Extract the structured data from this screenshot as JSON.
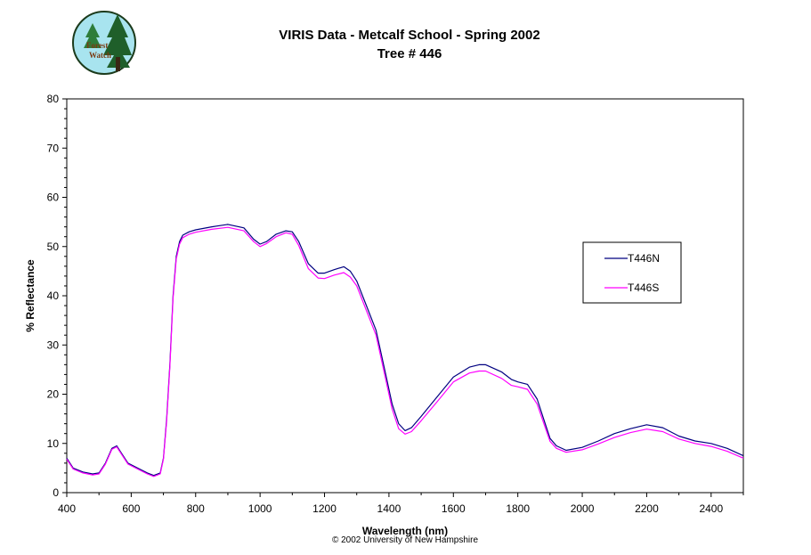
{
  "header": {
    "logo_text_1": "Forest",
    "logo_text_2": "Watch",
    "title_line1": "VIRIS Data - Metcalf School - Spring 2002",
    "title_line2": "Tree # 446"
  },
  "footer": {
    "copyright": "© 2002 University of New Hampshire"
  },
  "colors": {
    "T446N": "#000080",
    "T446S": "#ff00ff",
    "frame": "#000000"
  },
  "chart_data": {
    "type": "line",
    "xlabel": "Wavelength (nm)",
    "ylabel": "% Reflectance",
    "xlim": [
      400,
      2500
    ],
    "ylim": [
      0,
      80
    ],
    "xticks": [
      400,
      600,
      800,
      1000,
      1200,
      1400,
      1600,
      1800,
      2000,
      2200,
      2400
    ],
    "yticks": [
      0,
      10,
      20,
      30,
      40,
      50,
      60,
      70,
      80
    ],
    "legend": "right",
    "series": [
      {
        "name": "T446N",
        "color": "#000080",
        "x": [
          400,
          420,
          450,
          480,
          500,
          520,
          540,
          555,
          570,
          590,
          620,
          650,
          670,
          690,
          700,
          710,
          720,
          730,
          740,
          750,
          760,
          780,
          800,
          850,
          900,
          950,
          980,
          1000,
          1020,
          1050,
          1080,
          1100,
          1120,
          1150,
          1180,
          1200,
          1230,
          1260,
          1280,
          1300,
          1330,
          1360,
          1390,
          1410,
          1430,
          1450,
          1470,
          1500,
          1550,
          1600,
          1650,
          1680,
          1700,
          1750,
          1780,
          1800,
          1830,
          1860,
          1880,
          1900,
          1920,
          1950,
          2000,
          2050,
          2100,
          2150,
          2200,
          2250,
          2300,
          2350,
          2400,
          2450,
          2500
        ],
        "y": [
          7.0,
          5.0,
          4.2,
          3.8,
          4.0,
          6.0,
          9.0,
          9.5,
          8.0,
          6.0,
          5.0,
          4.0,
          3.5,
          4.0,
          7.0,
          15.0,
          26.0,
          40.0,
          48.0,
          51.0,
          52.3,
          53.0,
          53.4,
          54.0,
          54.5,
          53.8,
          51.5,
          50.5,
          51.0,
          52.5,
          53.2,
          53.0,
          51.0,
          46.5,
          44.6,
          44.6,
          45.3,
          45.9,
          45.0,
          43.0,
          38.0,
          33.0,
          24.0,
          18.0,
          14.0,
          12.6,
          13.2,
          15.5,
          19.5,
          23.5,
          25.5,
          26.0,
          26.0,
          24.5,
          23.0,
          22.5,
          22.0,
          19.0,
          15.0,
          11.0,
          9.5,
          8.6,
          9.2,
          10.5,
          12.0,
          13.0,
          13.8,
          13.2,
          11.5,
          10.5,
          10.0,
          9.0,
          7.5
        ]
      },
      {
        "name": "T446S",
        "color": "#ff00ff",
        "x": [
          400,
          420,
          450,
          480,
          500,
          520,
          540,
          555,
          570,
          590,
          620,
          650,
          670,
          690,
          700,
          710,
          720,
          730,
          740,
          750,
          760,
          780,
          800,
          850,
          900,
          950,
          980,
          1000,
          1020,
          1050,
          1080,
          1100,
          1120,
          1150,
          1180,
          1200,
          1230,
          1260,
          1280,
          1300,
          1330,
          1360,
          1390,
          1410,
          1430,
          1450,
          1470,
          1500,
          1550,
          1600,
          1650,
          1680,
          1700,
          1750,
          1780,
          1800,
          1830,
          1860,
          1880,
          1900,
          1920,
          1950,
          2000,
          2050,
          2100,
          2150,
          2200,
          2250,
          2300,
          2350,
          2400,
          2450,
          2500
        ],
        "y": [
          6.8,
          4.8,
          4.0,
          3.6,
          3.8,
          5.8,
          8.8,
          9.3,
          7.8,
          5.8,
          4.8,
          3.8,
          3.3,
          3.8,
          6.8,
          14.5,
          25.5,
          39.5,
          47.5,
          50.5,
          51.8,
          52.5,
          52.9,
          53.5,
          53.9,
          53.2,
          51.0,
          50.0,
          50.6,
          52.0,
          52.8,
          52.5,
          50.2,
          45.5,
          43.6,
          43.5,
          44.2,
          44.7,
          43.8,
          42.0,
          37.0,
          32.0,
          23.0,
          17.0,
          13.0,
          11.9,
          12.4,
          14.6,
          18.5,
          22.5,
          24.3,
          24.7,
          24.7,
          23.2,
          21.8,
          21.5,
          21.0,
          18.0,
          14.2,
          10.4,
          9.0,
          8.2,
          8.7,
          9.9,
          11.2,
          12.2,
          12.9,
          12.4,
          10.9,
          10.0,
          9.4,
          8.4,
          7.0
        ]
      }
    ]
  }
}
